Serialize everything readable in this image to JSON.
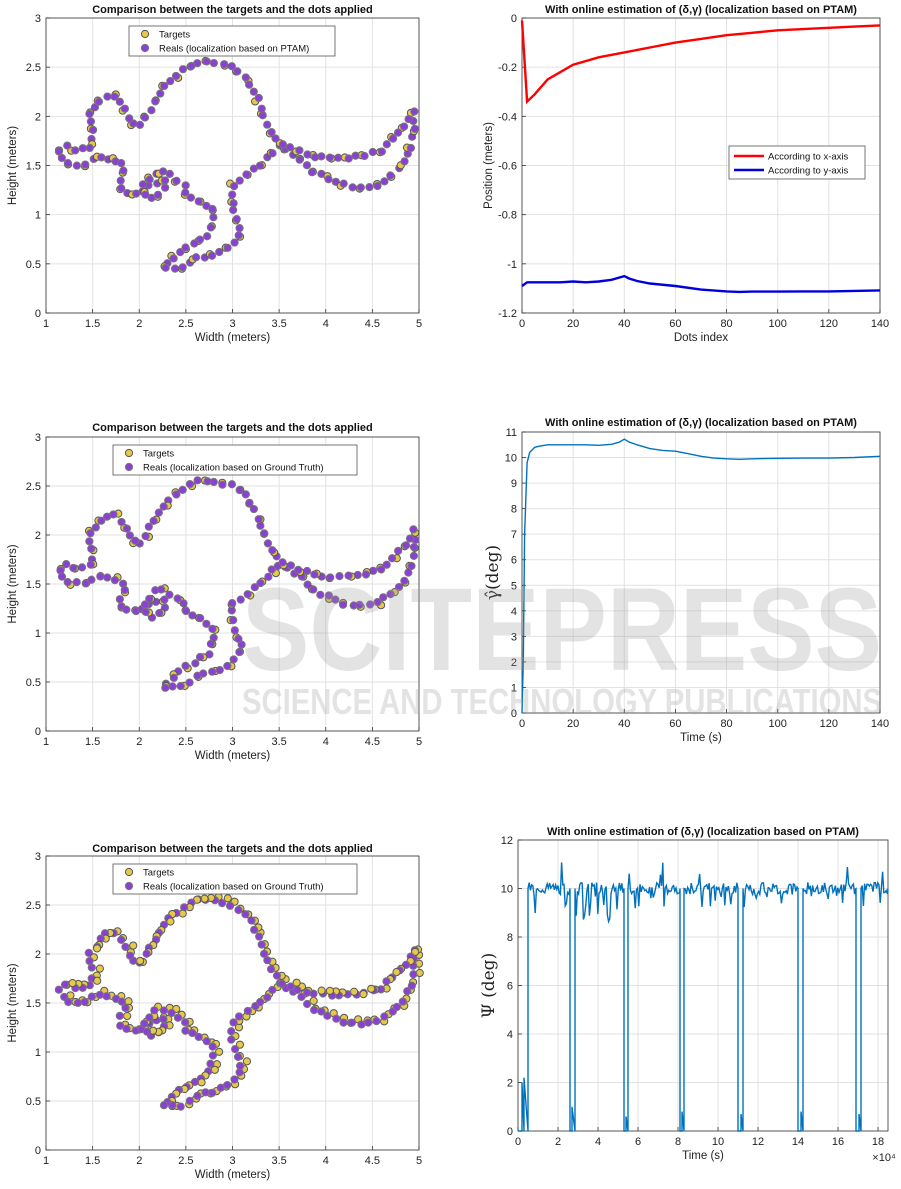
{
  "watermark": {
    "big": "SCITEPRESS",
    "small": "SCIENCE AND TECHNOLOGY PUBLICATIONS"
  },
  "chart_data": [
    {
      "type": "scatter",
      "title": "Comparison between the targets and the dots applied",
      "xlabel": "Width (meters)",
      "ylabel": "Height (meters)",
      "xlim": [
        1,
        5
      ],
      "ylim": [
        0,
        3
      ],
      "xticks": [
        "1",
        "1.5",
        "2",
        "2.5",
        "3",
        "3.5",
        "4",
        "4.5",
        "5"
      ],
      "yticks": [
        "0",
        "0.5",
        "1",
        "1.5",
        "2",
        "2.5",
        "3"
      ],
      "grid": true,
      "legend_position": "top-center",
      "series": [
        {
          "name": "Targets",
          "color": "#e6c84a",
          "edge": "#555555"
        },
        {
          "name": "Reals (localization based on PTAM)",
          "color": "#8b3fd6",
          "edge": "#777777"
        }
      ],
      "offset": [
        -0.01,
        0.0
      ]
    },
    {
      "type": "line",
      "title": "With online estimation of (δ,γ) (localization based on PTAM)",
      "xlabel": "Dots index",
      "ylabel": "Position (meters)",
      "xlim": [
        0,
        140
      ],
      "ylim": [
        -1.2,
        0
      ],
      "xticks": [
        "0",
        "20",
        "40",
        "60",
        "80",
        "100",
        "120",
        "140"
      ],
      "yticks": [
        "0",
        "-0.2",
        "-0.4",
        "-0.6",
        "-0.8",
        "-1",
        "-1.2"
      ],
      "grid": true,
      "legend_position": "center-right",
      "series": [
        {
          "name": "According to x-axis",
          "color": "#ff0000",
          "x": [
            0,
            2,
            5,
            10,
            15,
            20,
            30,
            40,
            50,
            60,
            70,
            80,
            90,
            100,
            110,
            120,
            130,
            140
          ],
          "y": [
            -0.01,
            -0.34,
            -0.31,
            -0.25,
            -0.22,
            -0.19,
            -0.16,
            -0.14,
            -0.12,
            -0.1,
            -0.085,
            -0.07,
            -0.06,
            -0.05,
            -0.045,
            -0.04,
            -0.035,
            -0.03
          ]
        },
        {
          "name": "According to y-axis",
          "color": "#0000dd",
          "x": [
            0,
            2,
            5,
            10,
            15,
            20,
            25,
            30,
            35,
            40,
            42,
            45,
            50,
            60,
            70,
            80,
            85,
            90,
            100,
            110,
            120,
            130,
            140
          ],
          "y": [
            -1.09,
            -1.075,
            -1.075,
            -1.075,
            -1.075,
            -1.072,
            -1.075,
            -1.072,
            -1.065,
            -1.05,
            -1.06,
            -1.07,
            -1.08,
            -1.09,
            -1.105,
            -1.112,
            -1.114,
            -1.113,
            -1.113,
            -1.112,
            -1.112,
            -1.11,
            -1.108
          ]
        }
      ]
    },
    {
      "type": "scatter",
      "title": "Comparison between the targets and the dots applied",
      "xlabel": "Width (meters)",
      "ylabel": "Height (meters)",
      "xlim": [
        1,
        5
      ],
      "ylim": [
        0,
        3
      ],
      "xticks": [
        "1",
        "1.5",
        "2",
        "2.5",
        "3",
        "3.5",
        "4",
        "4.5",
        "5"
      ],
      "yticks": [
        "0",
        "0.5",
        "1",
        "1.5",
        "2",
        "2.5",
        "3"
      ],
      "grid": true,
      "legend_position": "top-center",
      "series": [
        {
          "name": "Targets",
          "color": "#e6c84a",
          "edge": "#555555"
        },
        {
          "name": "Reals (localization based on Ground Truth)",
          "color": "#8b3fd6",
          "edge": "#777777"
        }
      ],
      "offset": [
        0.01,
        0.0
      ]
    },
    {
      "type": "line",
      "title": "With online estimation of (δ,γ) (localization based on PTAM)",
      "xlabel": "Time (s)",
      "ylabel": "γ̂(deg)",
      "xlim": [
        0,
        140
      ],
      "ylim": [
        0,
        11
      ],
      "xticks": [
        "0",
        "20",
        "40",
        "60",
        "80",
        "100",
        "120",
        "140"
      ],
      "yticks": [
        "0",
        "1",
        "2",
        "3",
        "4",
        "5",
        "6",
        "7",
        "8",
        "9",
        "10",
        "11"
      ],
      "grid": true,
      "series": [
        {
          "name": "",
          "color": "#0072bd",
          "x": [
            0,
            0.5,
            1,
            2,
            3,
            4,
            5,
            7,
            10,
            15,
            20,
            25,
            30,
            35,
            38,
            40,
            42,
            45,
            50,
            55,
            60,
            65,
            70,
            75,
            80,
            85,
            90,
            100,
            110,
            120,
            130,
            140
          ],
          "y": [
            0,
            2,
            7,
            9.8,
            10.2,
            10.3,
            10.4,
            10.45,
            10.5,
            10.5,
            10.5,
            10.5,
            10.48,
            10.52,
            10.6,
            10.72,
            10.6,
            10.5,
            10.35,
            10.28,
            10.25,
            10.15,
            10.05,
            9.98,
            9.95,
            9.93,
            9.95,
            9.97,
            9.98,
            9.98,
            10.0,
            10.05
          ]
        }
      ]
    },
    {
      "type": "scatter",
      "title": "Comparison between the targets and the dots applied",
      "xlabel": "Width (meters)",
      "ylabel": "Height (meters)",
      "xlim": [
        1,
        5
      ],
      "ylim": [
        0,
        3
      ],
      "xticks": [
        "1",
        "1.5",
        "2",
        "2.5",
        "3",
        "3.5",
        "4",
        "4.5",
        "5"
      ],
      "yticks": [
        "0",
        "0.5",
        "1",
        "1.5",
        "2",
        "2.5",
        "3"
      ],
      "grid": true,
      "legend_position": "top-center",
      "series": [
        {
          "name": "Targets",
          "color": "#e6c84a",
          "edge": "#555555"
        },
        {
          "name": "Reals (localization based on Ground Truth)",
          "color": "#8b3fd6",
          "edge": "#777777"
        }
      ],
      "offset": [
        0.05,
        0.02
      ]
    },
    {
      "type": "line",
      "title": "With online estimation of (δ,γ) (localization based on PTAM)",
      "xlabel": "Time (s)",
      "ylabel": "Ψ (deg)",
      "x_exponent": "×10⁴",
      "xlim": [
        0,
        18.5
      ],
      "ylim": [
        0,
        12
      ],
      "xticks": [
        "0",
        "2",
        "4",
        "6",
        "8",
        "10",
        "12",
        "14",
        "16",
        "18"
      ],
      "yticks": [
        "0",
        "2",
        "4",
        "6",
        "8",
        "10",
        "12"
      ],
      "grid": true,
      "series": [
        {
          "name": "",
          "color": "#0072bd",
          "x": [
            0,
            0.2,
            0.2,
            0.3,
            0.3,
            0.5,
            0.5,
            2.6,
            2.6,
            2.7,
            2.7,
            2.85,
            2.85,
            5.3,
            5.3,
            5.4,
            5.4,
            5.5,
            5.5,
            8.1,
            8.1,
            8.2,
            8.2,
            8.3,
            8.3,
            11.0,
            11.0,
            11.15,
            11.15,
            11.25,
            11.25,
            14.0,
            14.0,
            14.15,
            14.15,
            14.25,
            14.25,
            16.9,
            16.9,
            17.05,
            17.05,
            17.15,
            17.15,
            18.5
          ],
          "y": [
            0,
            0,
            2,
            0,
            2.2,
            0,
            10,
            10,
            0,
            0,
            1,
            0,
            10,
            10,
            0,
            0,
            0.6,
            0,
            10,
            10,
            0,
            0,
            0.8,
            0,
            10,
            10,
            0,
            0,
            0.7,
            0,
            10,
            10,
            0,
            0,
            0.8,
            0,
            10,
            10,
            0,
            0,
            0.7,
            0,
            10,
            10
          ]
        }
      ],
      "noise": true
    }
  ]
}
